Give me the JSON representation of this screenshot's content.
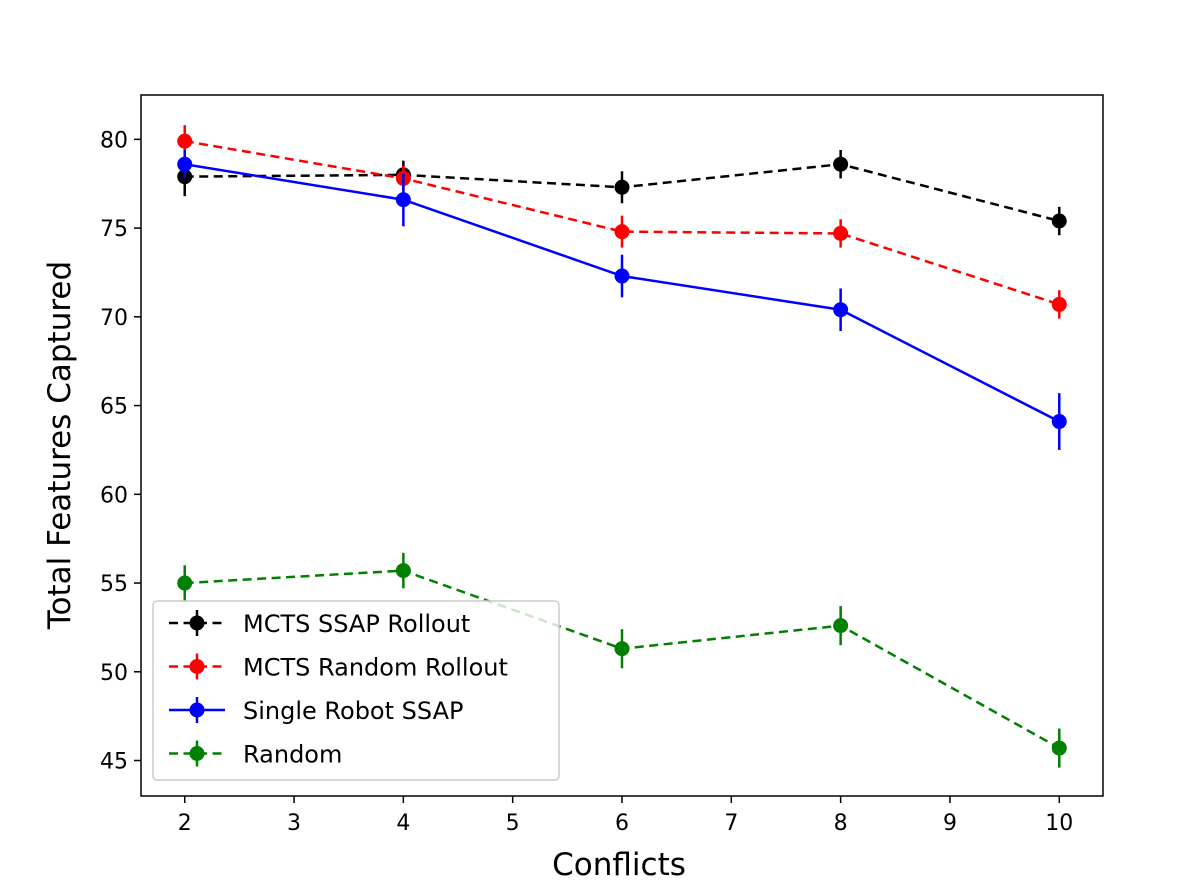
{
  "chart_data": {
    "type": "line",
    "title": "",
    "xlabel": "Conflicts",
    "ylabel": "Total Features Captured",
    "xlim": [
      1.6,
      10.4
    ],
    "ylim": [
      43.0,
      82.5
    ],
    "xticks": [
      2,
      3,
      4,
      5,
      6,
      7,
      8,
      9,
      10
    ],
    "yticks": [
      45,
      50,
      55,
      60,
      65,
      70,
      75,
      80
    ],
    "grid": false,
    "legend_position": "lower-left",
    "x": [
      2,
      4,
      6,
      8,
      10
    ],
    "series": [
      {
        "name": "MCTS SSAP Rollout",
        "color": "#000000",
        "dashed": true,
        "values": [
          77.9,
          78.0,
          77.3,
          78.6,
          75.4
        ],
        "errors": [
          1.1,
          0.8,
          0.9,
          0.8,
          0.8
        ]
      },
      {
        "name": "MCTS Random Rollout",
        "color": "#ff0000",
        "dashed": true,
        "values": [
          79.9,
          77.8,
          74.8,
          74.7,
          70.7
        ],
        "errors": [
          0.9,
          0.7,
          0.9,
          0.8,
          0.8
        ]
      },
      {
        "name": "Single Robot SSAP",
        "color": "#0000ff",
        "dashed": false,
        "values": [
          78.6,
          76.6,
          72.3,
          70.4,
          64.1
        ],
        "errors": [
          0.8,
          1.5,
          1.2,
          1.2,
          1.6
        ]
      },
      {
        "name": "Random",
        "color": "#008000",
        "dashed": true,
        "values": [
          55.0,
          55.7,
          51.3,
          52.6,
          45.7
        ],
        "errors": [
          1.0,
          1.0,
          1.1,
          1.1,
          1.1
        ]
      }
    ]
  }
}
